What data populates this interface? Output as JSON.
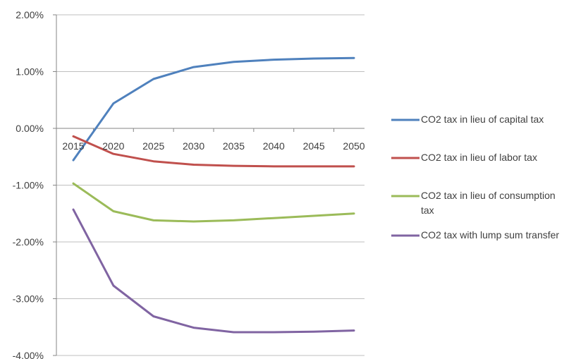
{
  "chart_data": {
    "type": "line",
    "title": "",
    "xlabel": "",
    "ylabel": "",
    "categories": [
      "2015",
      "2020",
      "2025",
      "2030",
      "2035",
      "2040",
      "2045",
      "2050"
    ],
    "ylim": [
      -0.04,
      0.02
    ],
    "y_ticks": [
      0.02,
      0.01,
      0.0,
      -0.01,
      -0.02,
      -0.03,
      -0.04
    ],
    "y_tick_labels": [
      "2.00%",
      "1.00%",
      "0.00%",
      "-1.00%",
      "-2.00%",
      "-3.00%",
      "-4.00%"
    ],
    "grid": true,
    "legend_position": "right",
    "series": [
      {
        "name": "CO2 tax in lieu of capital tax",
        "color": "#4f81bd",
        "values": [
          -0.0056,
          0.0044,
          0.0087,
          0.0108,
          0.0117,
          0.0121,
          0.0123,
          0.0124
        ]
      },
      {
        "name": "CO2 tax in lieu of labor tax",
        "color": "#c0504d",
        "values": [
          -0.0014,
          -0.0045,
          -0.0058,
          -0.0064,
          -0.0066,
          -0.0067,
          -0.0067,
          -0.0067
        ]
      },
      {
        "name": "CO2 tax in lieu of consumption tax",
        "color": "#9bbb59",
        "values": [
          -0.0097,
          -0.0146,
          -0.0162,
          -0.0164,
          -0.0162,
          -0.0158,
          -0.0154,
          -0.015
        ]
      },
      {
        "name": "CO2 tax with lump sum transfer",
        "color": "#8064a2",
        "values": [
          -0.0143,
          -0.0277,
          -0.0331,
          -0.0351,
          -0.0359,
          -0.0359,
          -0.0358,
          -0.0356
        ]
      }
    ]
  }
}
